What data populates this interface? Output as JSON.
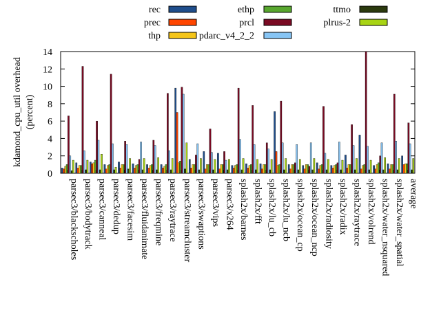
{
  "chart_data": {
    "type": "bar",
    "ylabel": "kdamond_cpu_util overhead (percent)",
    "ylabel_lines": [
      "kdamond_cpu_util overhead",
      "(percent)"
    ],
    "ylim": [
      0,
      14
    ],
    "yticks": [
      0,
      2,
      4,
      6,
      8,
      10,
      12,
      14
    ],
    "grid": false,
    "legend_position": "top",
    "categories": [
      "parsec3/blackscholes",
      "parsec3/bodytrack",
      "parsec3/canneal",
      "parsec3/dedup",
      "parsec3/facesim",
      "parsec3/fluidanimate",
      "parsec3/freqmine",
      "parsec3/raytrace",
      "parsec3/streamcluster",
      "parsec3/swaptions",
      "parsec3/vips",
      "parsec3/x264",
      "splash2x/barnes",
      "splash2x/fft",
      "splash2x/lu_cb",
      "splash2x/lu_ncb",
      "splash2x/ocean_cp",
      "splash2x/ocean_ncp",
      "splash2x/radiosity",
      "splash2x/radix",
      "splash2x/raytrace",
      "splash2x/volrend",
      "splash2x/water_nsquared",
      "splash2x/water_spatial",
      "average"
    ],
    "series": [
      {
        "name": "rec",
        "color": "#1f4e8c",
        "values": [
          0.6,
          1.2,
          1.3,
          1.0,
          1.3,
          1.1,
          1.0,
          1.0,
          9.8,
          1.6,
          2.5,
          2.3,
          0.9,
          1.1,
          1.1,
          7.1,
          1.0,
          0.9,
          1.2,
          0.9,
          2.1,
          4.4,
          0.9,
          1.1,
          2.0
        ]
      },
      {
        "name": "prec",
        "color": "#ff4500",
        "values": [
          0.5,
          0.6,
          1.1,
          0.5,
          0.6,
          0.6,
          0.6,
          0.6,
          7.0,
          0.6,
          0.5,
          0.5,
          0.6,
          0.6,
          0.5,
          2.5,
          0.5,
          0.5,
          0.5,
          0.6,
          0.6,
          0.5,
          0.5,
          0.5,
          1.0
        ]
      },
      {
        "name": "thp",
        "color": "#f5c518",
        "values": [
          0.8,
          0.9,
          1.2,
          0.9,
          1.0,
          0.9,
          0.9,
          0.8,
          1.2,
          1.0,
          1.0,
          1.0,
          0.9,
          0.9,
          1.0,
          0.9,
          1.0,
          1.0,
          0.9,
          0.9,
          1.0,
          0.9,
          1.0,
          1.0,
          1.1
        ]
      },
      {
        "name": "ethp",
        "color": "#58a72e",
        "values": [
          1.0,
          0.9,
          1.5,
          1.0,
          1.0,
          1.0,
          1.0,
          1.0,
          1.4,
          1.0,
          1.0,
          1.0,
          1.0,
          1.0,
          1.0,
          1.0,
          1.0,
          1.0,
          1.0,
          1.0,
          1.0,
          1.0,
          1.2,
          1.0,
          1.1
        ]
      },
      {
        "name": "prcl",
        "color": "#7a0a23",
        "values": [
          6.6,
          12.3,
          6.0,
          11.4,
          3.7,
          1.6,
          3.8,
          9.2,
          9.9,
          2.1,
          5.1,
          2.5,
          9.8,
          7.8,
          3.5,
          8.3,
          1.2,
          0.8,
          7.7,
          1.2,
          5.6,
          14.0,
          2.0,
          9.1,
          5.8
        ]
      },
      {
        "name": "pdarc_v4_2_2",
        "color": "#87c5f5",
        "values": [
          2.0,
          2.6,
          3.8,
          3.4,
          3.3,
          3.6,
          3.2,
          2.6,
          9.1,
          3.4,
          2.4,
          1.5,
          3.9,
          3.3,
          2.8,
          3.5,
          3.3,
          3.5,
          2.3,
          3.6,
          3.2,
          3.1,
          3.5,
          3.7,
          3.4
        ]
      },
      {
        "name": "ttmo",
        "color": "#2b3a0e",
        "values": [
          0.3,
          0.4,
          0.4,
          0.4,
          0.5,
          0.4,
          0.4,
          0.4,
          0.5,
          0.4,
          0.4,
          0.4,
          0.4,
          0.4,
          0.4,
          0.4,
          0.4,
          0.4,
          0.4,
          0.4,
          0.4,
          0.4,
          0.4,
          0.4,
          0.4
        ]
      },
      {
        "name": "plrus-2",
        "color": "#a8d414",
        "values": [
          1.5,
          1.5,
          2.2,
          0.7,
          1.7,
          1.7,
          1.8,
          1.7,
          3.5,
          1.7,
          1.6,
          1.6,
          1.7,
          1.6,
          1.6,
          1.7,
          1.6,
          1.7,
          1.6,
          1.5,
          1.7,
          1.5,
          1.8,
          1.7,
          1.7
        ]
      }
    ]
  }
}
